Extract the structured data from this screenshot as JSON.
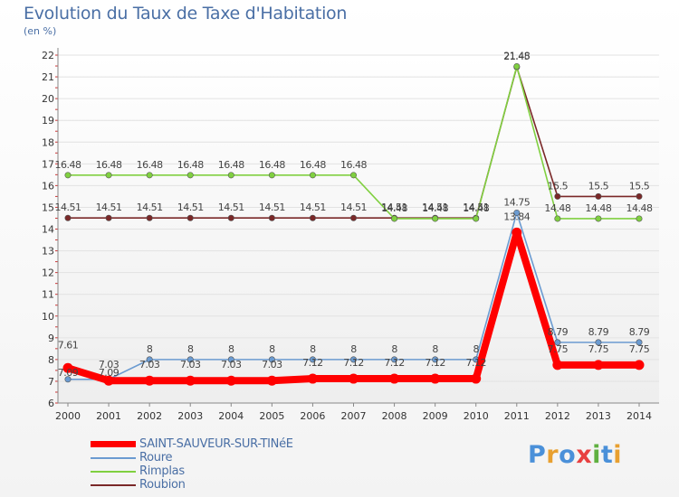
{
  "title": "Evolution du Taux de Taxe d'Habitation",
  "subtitle": "(en %)",
  "logo_text": "Proxiti",
  "chart_data": {
    "type": "line",
    "title": "Evolution du Taux de Taxe d'Habitation",
    "subtitle": "(en %)",
    "xlabel": "",
    "ylabel": "",
    "ylim": [
      6,
      22
    ],
    "yticks": [
      6,
      7,
      8,
      9,
      10,
      11,
      12,
      13,
      14,
      15,
      16,
      17,
      18,
      19,
      20,
      21,
      22
    ],
    "categories": [
      "2000",
      "2001",
      "2002",
      "2003",
      "2004",
      "2005",
      "2006",
      "2007",
      "2008",
      "2009",
      "2010",
      "2011",
      "2012",
      "2013",
      "2014"
    ],
    "grid": "horizontal",
    "legend_position": "bottom-left",
    "series": [
      {
        "name": "SAINT-SAUVEUR-SUR-TINéE",
        "color": "#ff0000",
        "values": [
          7.61,
          7.03,
          7.03,
          7.03,
          7.03,
          7.03,
          7.12,
          7.12,
          7.12,
          7.12,
          7.12,
          13.84,
          7.75,
          7.75,
          7.75
        ],
        "labels": [
          "7.61",
          "7.03",
          "7.03",
          "7.03",
          "7.03",
          "7.03",
          "7.12",
          "7.12",
          "7.12",
          "7.12",
          "7.12",
          "13.84",
          "7.75",
          "7.75",
          "7.75"
        ]
      },
      {
        "name": "Roure",
        "color": "#6b9bd1",
        "values": [
          7.09,
          7.09,
          8,
          8,
          8,
          8,
          8,
          8,
          8,
          8,
          8,
          14.75,
          8.79,
          8.79,
          8.79
        ],
        "labels": [
          "7.09",
          "7.09",
          "8",
          "8",
          "8",
          "8",
          "8",
          "8",
          "8",
          "8",
          "8",
          "14.75",
          "8.79",
          "8.79",
          "8.79"
        ]
      },
      {
        "name": "Rimplas",
        "color": "#80d040",
        "values": [
          16.48,
          16.48,
          16.48,
          16.48,
          16.48,
          16.48,
          16.48,
          16.48,
          14.48,
          14.48,
          14.48,
          21.48,
          14.48,
          14.48,
          14.48
        ],
        "labels": [
          "16.48",
          "16.48",
          "16.48",
          "16.48",
          "16.48",
          "16.48",
          "16.48",
          "16.48",
          "14.48",
          "14.48",
          "14.48",
          "21.48",
          "14.48",
          "14.48",
          "14.48"
        ]
      },
      {
        "name": "Roubion",
        "color": "#7a2828",
        "values": [
          14.51,
          14.51,
          14.51,
          14.51,
          14.51,
          14.51,
          14.51,
          14.51,
          14.51,
          14.51,
          14.51,
          21.45,
          15.5,
          15.5,
          15.5
        ],
        "labels": [
          "14.51",
          "14.51",
          "14.51",
          "14.51",
          "14.51",
          "14.51",
          "14.51",
          "14.51",
          "14.51",
          "14.51",
          "14.51",
          "21.45",
          "15.5",
          "15.5",
          "15.5"
        ]
      }
    ]
  }
}
